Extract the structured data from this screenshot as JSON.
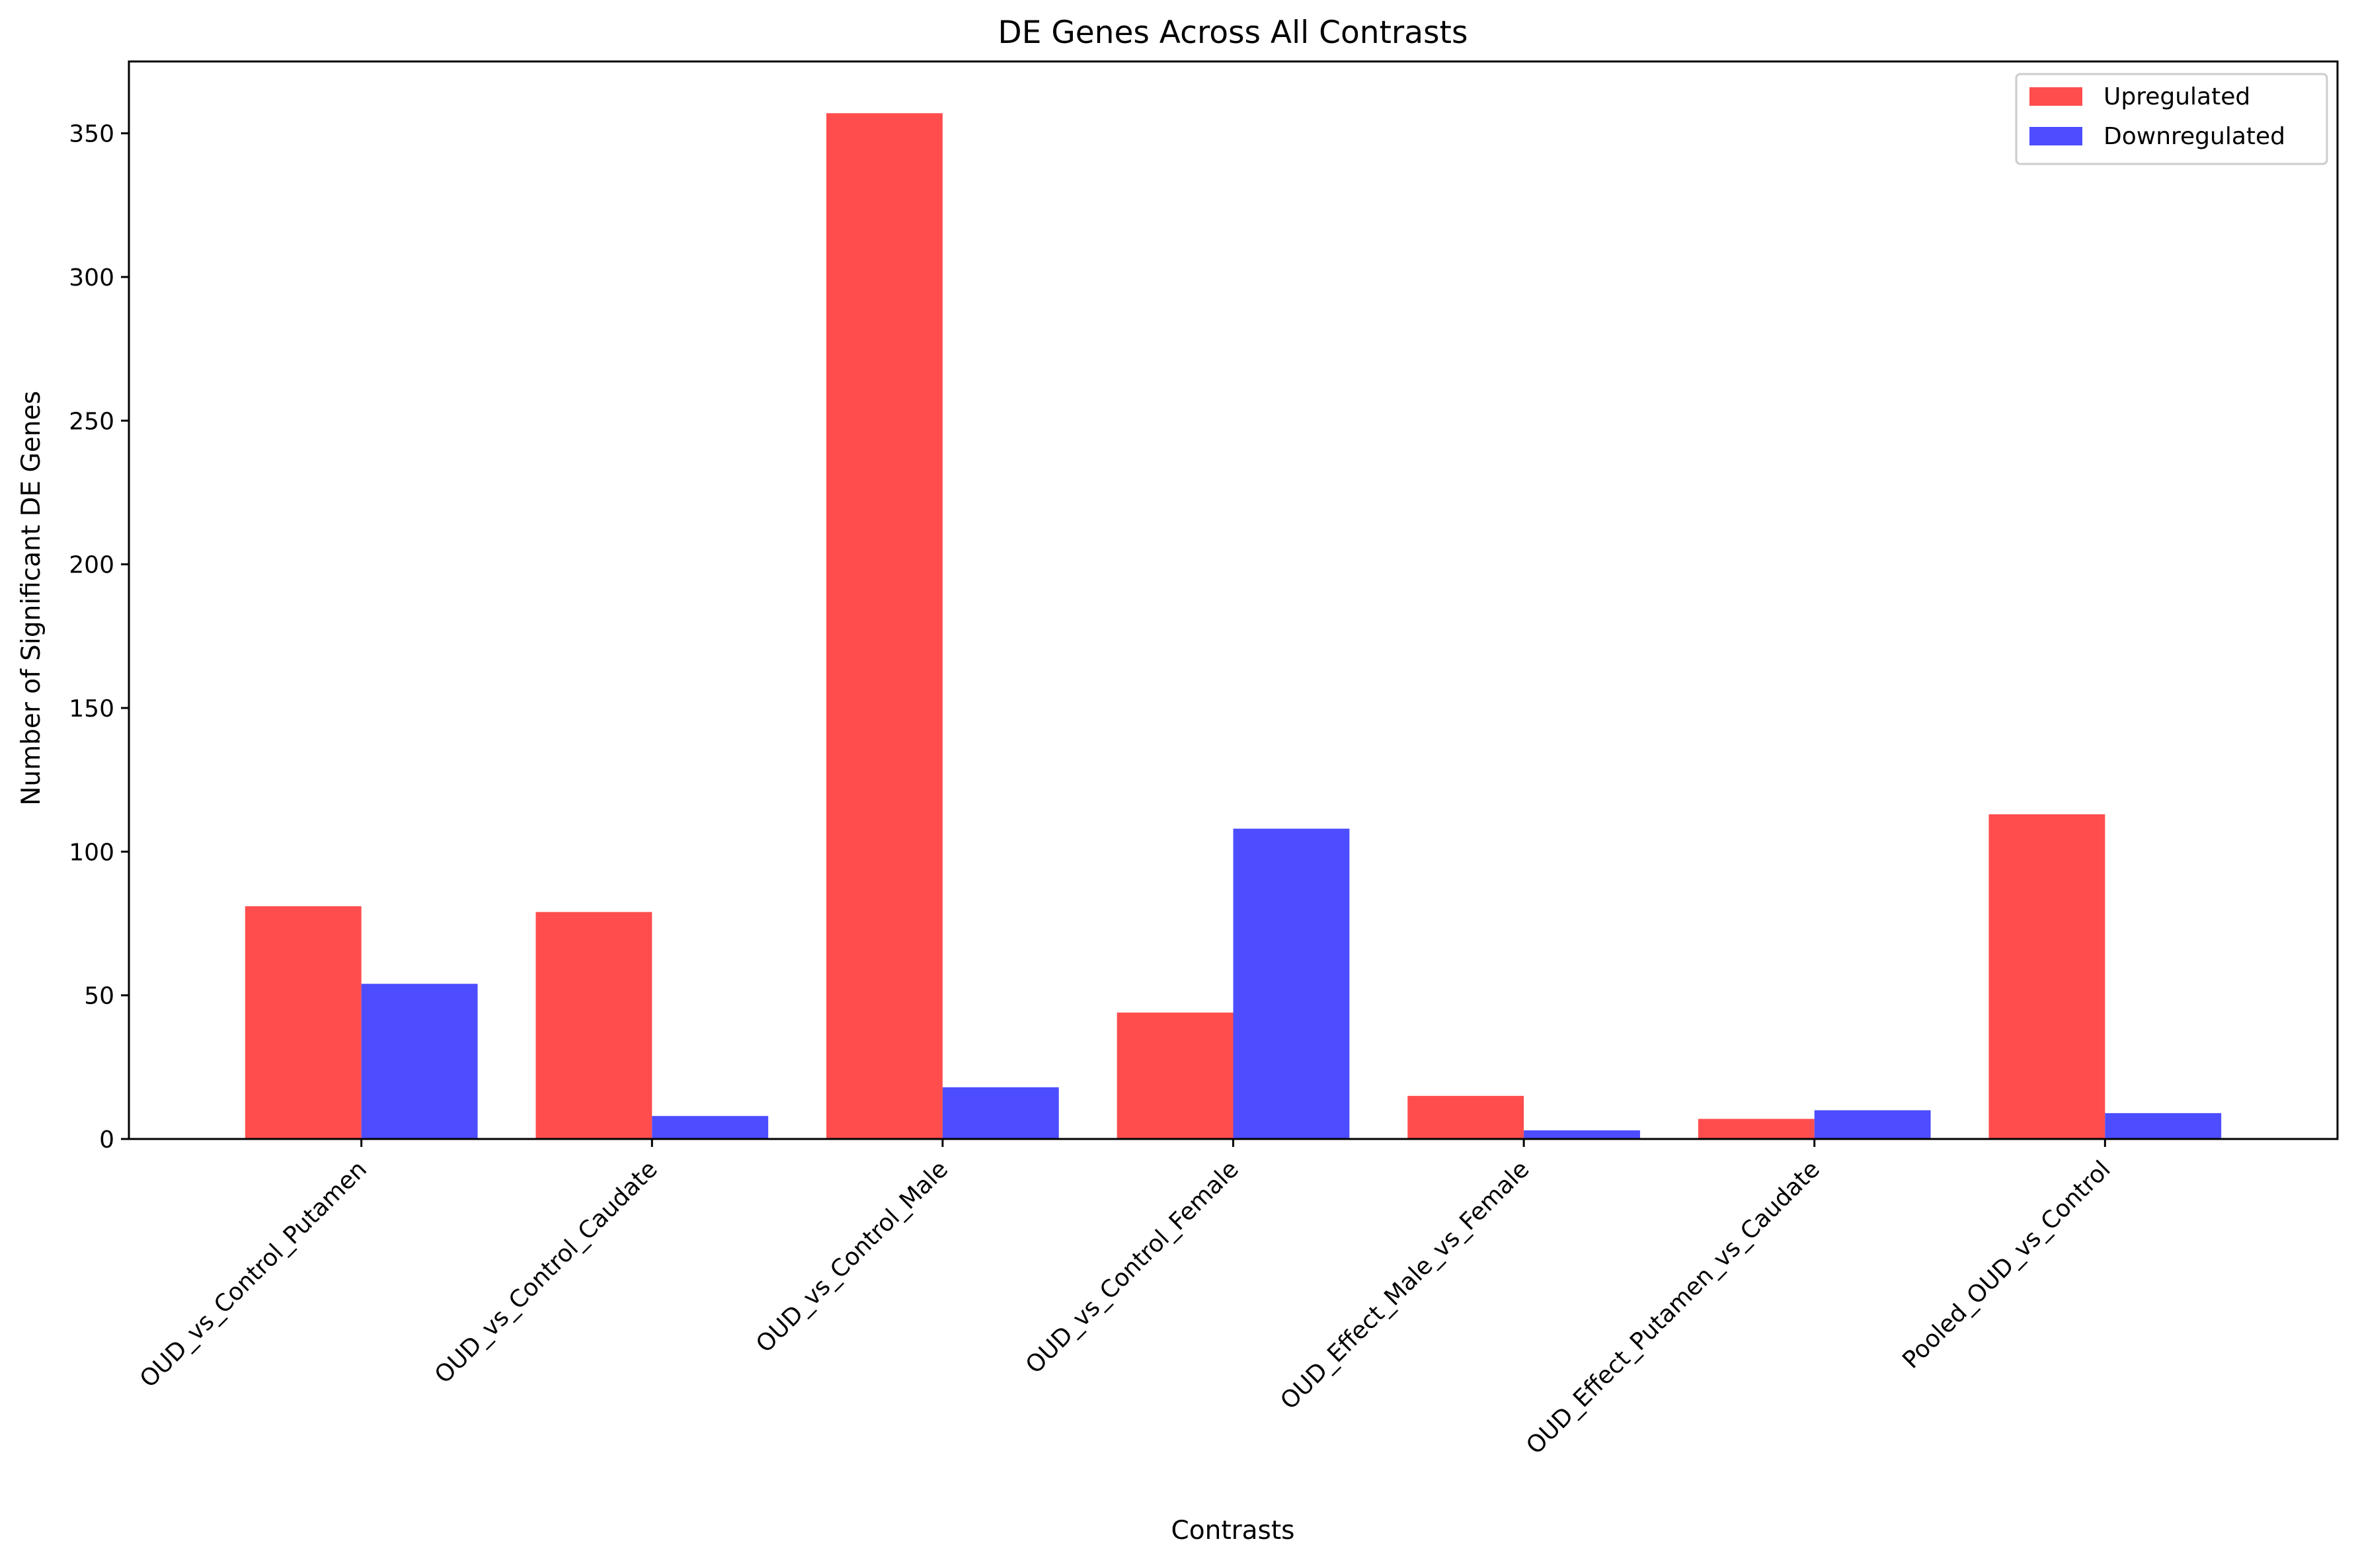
{
  "chart_data": {
    "type": "bar",
    "title": "DE Genes Across All Contrasts",
    "xlabel": "Contrasts",
    "ylabel": "Number of Significant DE Genes",
    "categories": [
      "OUD_vs_Control_Putamen",
      "OUD_vs_Control_Caudate",
      "OUD_vs_Control_Male",
      "OUD_vs_Control_Female",
      "OUD_Effect_Male_vs_Female",
      "OUD_Effect_Putamen_vs_Caudate",
      "Pooled_OUD_vs_Control"
    ],
    "series": [
      {
        "name": "Upregulated",
        "color": "#ff4d4d",
        "values": [
          81,
          79,
          357,
          44,
          15,
          7,
          113
        ]
      },
      {
        "name": "Downregulated",
        "color": "#4d4dff",
        "values": [
          54,
          8,
          18,
          108,
          3,
          10,
          9
        ]
      }
    ],
    "ylim": [
      0,
      375
    ],
    "yticks": [
      0,
      50,
      100,
      150,
      200,
      250,
      300,
      350
    ],
    "grid": false,
    "legend_position": "top-right"
  }
}
